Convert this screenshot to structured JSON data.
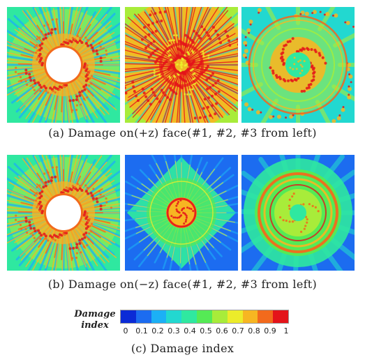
{
  "rows": [
    {
      "caption": "(a) Damage on(+z) face(#1, #2, #3 from left)",
      "panels": [
        "#1",
        "#2",
        "#3"
      ]
    },
    {
      "caption": "(b) Damage on(−z) face(#1, #2, #3 from left)",
      "panels": [
        "#1",
        "#2",
        "#3"
      ]
    }
  ],
  "legend": {
    "title": "Damage index",
    "ticks": [
      "0",
      "0.1",
      "0.2",
      "0.3",
      "0.4",
      "0.5",
      "0.6",
      "0.7",
      "0.8",
      "0.9",
      "1"
    ],
    "colors": [
      "#0b2bd6",
      "#1c6cf0",
      "#1cb0f5",
      "#22d8d0",
      "#2fe8a0",
      "#55ea55",
      "#a8ec3a",
      "#ecec2a",
      "#f7b622",
      "#f26a1c",
      "#e4141a"
    ]
  },
  "caption_c": "(c) Damage index"
}
